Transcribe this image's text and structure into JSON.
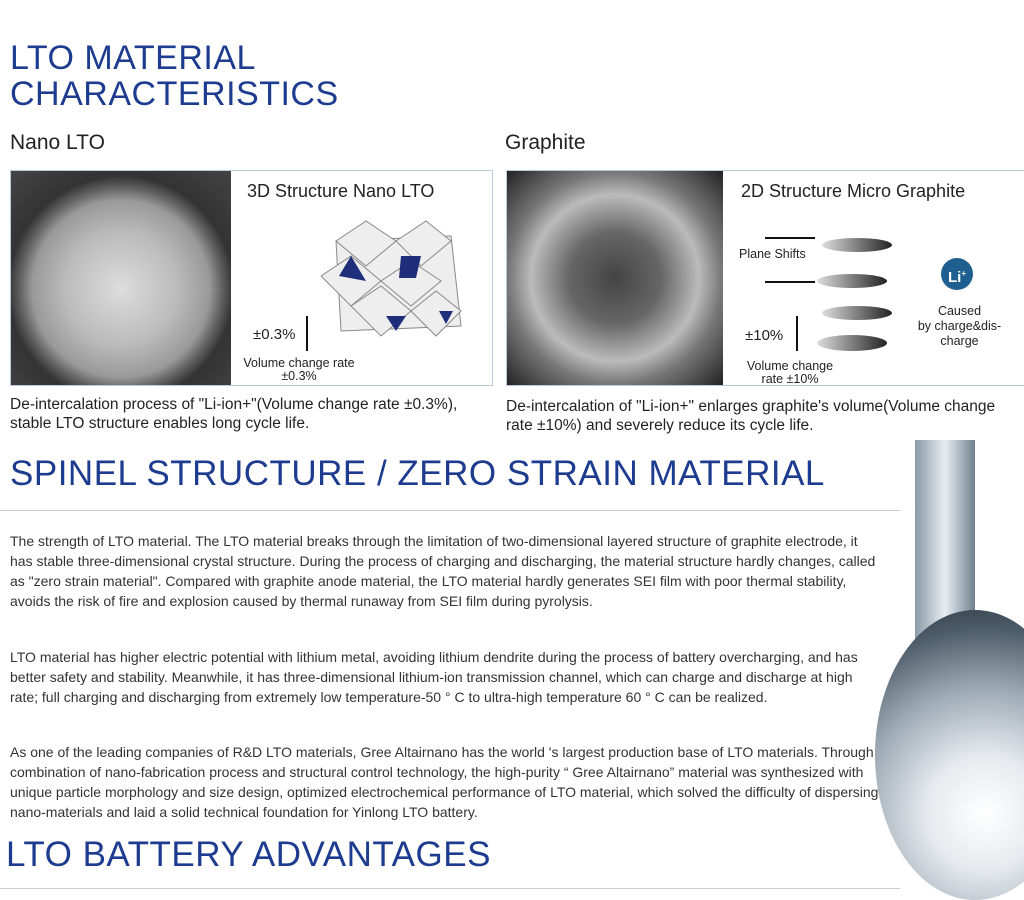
{
  "title": "LTO MATERIAL\nCHARACTERISTICS",
  "title_line1": "LTO MATERIAL",
  "title_line2": "CHARACTERISTICS",
  "left": {
    "heading": "Nano LTO",
    "diagram_title": "3D Structure Nano LTO",
    "pct": "±0.3%",
    "vol_label": "Volume change rate",
    "vol_value": "±0.3%",
    "caption": "De-intercalation process of \"Li-ion+\"(Volume change rate ±0.3%), stable LTO structure enables long cycle life.",
    "accent": "#1f2e7a"
  },
  "right": {
    "heading": "Graphite",
    "diagram_title": "2D Structure Micro Graphite",
    "plane_shifts": "Plane Shifts",
    "pct": "±10%",
    "vol_label": "Volume change",
    "vol_value": "rate ±10%",
    "li": "Li",
    "li_sup": "+",
    "caused": "Caused\nby charge&dis-\ncharge",
    "caption": "De-intercalation of \"Li-ion+\" enlarges graphite's volume(Volume change rate ±10%) and severely reduce its cycle life.",
    "li_color": "#1e5f8f"
  },
  "spinel": {
    "heading": "SPINEL STRUCTURE / ZERO STRAIN MATERIAL",
    "paragraphs": [
      "The strength of LTO material. The LTO material breaks through the limitation of two-dimensional layered structure of graphite electrode, it has stable three-dimensional crystal structure. During the process of charging and discharging, the material structure hardly changes, called as \"zero strain material\". Compared with graphite anode material, the LTO material hardly generates SEI film with poor thermal stability, avoids the risk of fire and explosion caused by thermal runaway from SEI film during pyrolysis.",
      "LTO material has higher electric potential with lithium metal, avoiding lithium dendrite during the process of battery overcharging, and has better safety and stability. Meanwhile, it has three-dimensional lithium-ion transmission channel, which can charge and discharge at high rate; full charging and discharging from extremely low temperature-50 ° C to ultra-high temperature 60 ° C can be realized.",
      "As one of the leading companies of R&D LTO materials, Gree Altairnano has the world 's largest production base of LTO materials. Through combination of nano-fabrication process and structural control technology, the high-purity “ Gree Altairnano” material was synthesized with unique particle morphology and size design, optimized electrochemical performance of LTO material, which solved the difficulty of dispersing nano-materials and laid a solid technical foundation for Yinlong LTO battery."
    ]
  },
  "advantages": {
    "heading": "LTO BATTERY ADVANTAGES"
  },
  "colors": {
    "heading": "#1d3c8f"
  }
}
